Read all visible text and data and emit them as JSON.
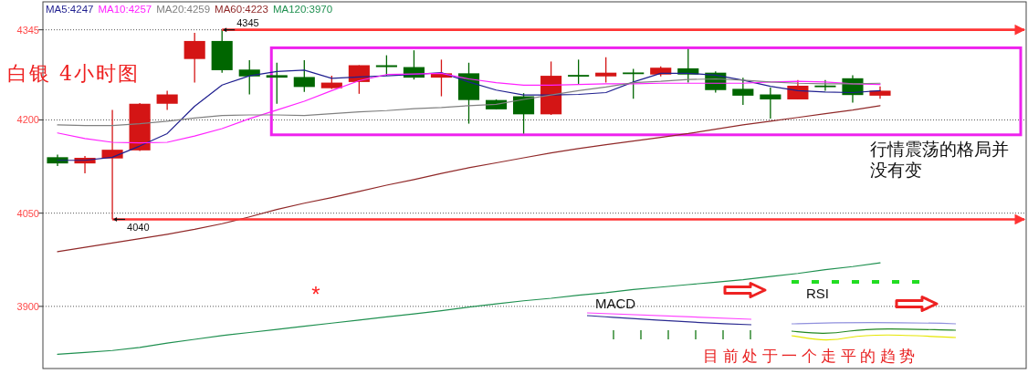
{
  "chart_data": {
    "type": "candlestick",
    "title": "白银 4小时图",
    "categories": [
      null,
      null,
      null,
      null,
      null,
      null,
      null,
      null,
      null,
      null,
      null,
      null,
      null,
      null,
      null,
      null,
      null,
      null,
      null,
      null,
      null,
      null,
      null,
      null,
      null,
      null,
      null,
      null,
      null,
      null,
      null
    ],
    "ohlc": [
      [
        4140,
        4144,
        4126,
        4130
      ],
      [
        4130,
        4142,
        4114,
        4139
      ],
      [
        4138,
        4216,
        4040,
        4152
      ],
      [
        4151,
        4227,
        4150,
        4226
      ],
      [
        4226,
        4247,
        4216,
        4241
      ],
      [
        4298,
        4340,
        4260,
        4327
      ],
      [
        4327,
        4345,
        4276,
        4280
      ],
      [
        4281,
        4296,
        4241,
        4270
      ],
      [
        4272,
        4292,
        4226,
        4268
      ],
      [
        4269,
        4296,
        4245,
        4253
      ],
      [
        4251,
        4271,
        4250,
        4260
      ],
      [
        4261,
        4288,
        4242,
        4288
      ],
      [
        4288,
        4304,
        4271,
        4285
      ],
      [
        4285,
        4312,
        4265,
        4268
      ],
      [
        4268,
        4297,
        4238,
        4275
      ],
      [
        4275,
        4292,
        4194,
        4232
      ],
      [
        4232,
        4233,
        4217,
        4217
      ],
      [
        4238,
        4243,
        4178,
        4209
      ],
      [
        4209,
        4294,
        4208,
        4271
      ],
      [
        4272,
        4297,
        4258,
        4270
      ],
      [
        4270,
        4301,
        4260,
        4276
      ],
      [
        4276,
        4282,
        4234,
        4274
      ],
      [
        4273,
        4286,
        4270,
        4284
      ],
      [
        4283,
        4314,
        4260,
        4273
      ],
      [
        4276,
        4278,
        4244,
        4248
      ],
      [
        4250,
        4268,
        4224,
        4239
      ],
      [
        4241,
        4252,
        4202,
        4233
      ],
      [
        4233,
        4264,
        4233,
        4255
      ],
      [
        4255,
        4264,
        4247,
        4253
      ],
      [
        4267,
        4272,
        4228,
        4240
      ],
      [
        4239,
        4254,
        4234,
        4247
      ]
    ],
    "colors": [
      "#006600",
      "#d41515",
      "#d41515",
      "#d41515",
      "#d41515",
      "#d41515",
      "#006600",
      "#006600",
      "#006600",
      "#006600",
      "#d41515",
      "#d41515",
      "#006600",
      "#006600",
      "#d41515",
      "#006600",
      "#006600",
      "#006600",
      "#d41515",
      "#006600",
      "#d41515",
      "#006600",
      "#d41515",
      "#006600",
      "#006600",
      "#006600",
      "#006600",
      "#d41515",
      "#006600",
      "#006600",
      "#d41515"
    ],
    "series": [
      {
        "type": "line",
        "name": "MA5:4247",
        "color": "#1f1f8f",
        "values": [
          4135,
          4135,
          4140,
          4158,
          4178,
          4222,
          4256,
          4271,
          4278,
          4280,
          4267,
          4269,
          4271,
          4273,
          4276,
          4261,
          4248,
          4240,
          4240,
          4241,
          4244,
          4261,
          4275,
          4275,
          4272,
          4264,
          4254,
          4247,
          4245,
          4244,
          4247
        ]
      },
      {
        "type": "line",
        "name": "MA10:4257",
        "color": "#ff22ff",
        "values": [
          4179,
          4170,
          4164,
          4163,
          4164,
          4174,
          4186,
          4202,
          4216,
          4230,
          4247,
          4263,
          4273,
          4274,
          4275,
          4266,
          4260,
          4256,
          4256,
          4257,
          4258,
          4258,
          4259,
          4259,
          4259,
          4259,
          4261,
          4262,
          4261,
          4258,
          4257
        ]
      },
      {
        "type": "line",
        "name": "MA20:4259",
        "color": "#808080",
        "values": [
          4192,
          4191,
          4191,
          4194,
          4198,
          4203,
          4207,
          4208,
          4208,
          4207,
          4210,
          4213,
          4215,
          4218,
          4220,
          4223,
          4225,
          4233,
          4240,
          4247,
          4253,
          4260,
          4262,
          4265,
          4266,
          4264,
          4261,
          4259,
          4258,
          4258,
          4259
        ]
      },
      {
        "type": "line",
        "name": "MA60:4223",
        "color": "#902828",
        "values": [
          3988,
          3995,
          4002,
          4009,
          4016,
          4024,
          4033,
          4044,
          4056,
          4066,
          4075,
          4085,
          4095,
          4104,
          4114,
          4123,
          4131,
          4139,
          4147,
          4154,
          4160,
          4166,
          4172,
          4178,
          4185,
          4192,
          4198,
          4204,
          4210,
          4216,
          4223
        ]
      },
      {
        "type": "line",
        "name": "MA120:3970",
        "color": "#1f9050",
        "values": [
          3823,
          3826,
          3829,
          3834,
          3841,
          3847,
          3853,
          3858,
          3863,
          3868,
          3873,
          3878,
          3883,
          3888,
          3893,
          3899,
          3904,
          3909,
          3913,
          3918,
          3922,
          3927,
          3931,
          3935,
          3939,
          3943,
          3948,
          3953,
          3959,
          3964,
          3970
        ]
      }
    ],
    "ylim": [
      3800,
      4390
    ],
    "yticks": [
      3900,
      4050,
      4200,
      4345
    ],
    "grid": "y",
    "legend": "top left",
    "ref_lines": [
      {
        "axis": "y",
        "value": 4345,
        "color": "#ff3333"
      },
      {
        "axis": "y",
        "value": 4040,
        "color": "#ff3333"
      }
    ],
    "annotations": [
      "4345",
      "4040",
      "行情震荡的格局并没有变",
      "目前处于一个走平的趋势",
      "*",
      "MACD",
      "RSI"
    ]
  }
}
